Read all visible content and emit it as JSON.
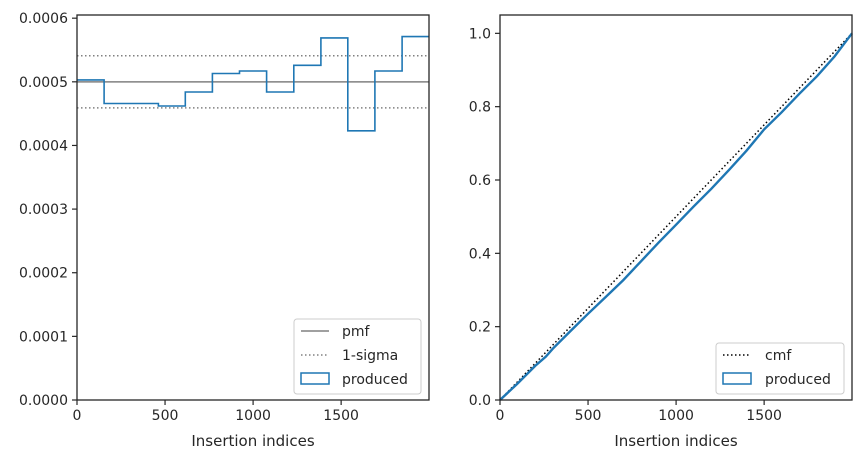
{
  "chart_data": [
    {
      "type": "step",
      "title": "",
      "xlabel": "Insertion indices",
      "ylabel": "",
      "xlim": [
        0,
        1999
      ],
      "ylim": [
        0,
        0.000605
      ],
      "xticks": [
        0,
        500,
        1000,
        1500
      ],
      "xtick_labels": [
        "0",
        "500",
        "1000",
        "1500"
      ],
      "yticks": [
        0,
        0.0001,
        0.0002,
        0.0003,
        0.0004,
        0.0005,
        0.0006
      ],
      "ytick_labels": [
        "0.0000",
        "0.0001",
        "0.0002",
        "0.0003",
        "0.0004",
        "0.0005",
        "0.0006"
      ],
      "pmf": 0.0005,
      "sigma_band": [
        0.000459,
        0.000541
      ],
      "bin_edges": [
        0,
        154,
        308,
        462,
        615,
        769,
        923,
        1077,
        1231,
        1385,
        1538,
        1692,
        1846,
        1999
      ],
      "series": [
        {
          "name": "produced",
          "values": [
            0.000503,
            0.000466,
            0.000466,
            0.000462,
            0.000484,
            0.000513,
            0.000517,
            0.000484,
            0.000526,
            0.000569,
            0.000423,
            0.000517,
            0.000571
          ],
          "color": "#1f77b4"
        }
      ],
      "legend": [
        "pmf",
        "1-sigma",
        "produced"
      ],
      "legend_position": "lower-right",
      "colors": {
        "pmf": "#808080",
        "sigma": "#808080",
        "produced": "#1f77b4"
      }
    },
    {
      "type": "line",
      "title": "",
      "xlabel": "Insertion indices",
      "ylabel": "",
      "xlim": [
        0,
        1999
      ],
      "ylim": [
        0,
        1.05
      ],
      "xticks": [
        0,
        500,
        1000,
        1500
      ],
      "xtick_labels": [
        "0",
        "500",
        "1000",
        "1500"
      ],
      "yticks": [
        0,
        0.2,
        0.4,
        0.6,
        0.8,
        1.0
      ],
      "ytick_labels": [
        "0.0",
        "0.2",
        "0.4",
        "0.6",
        "0.8",
        "1.0"
      ],
      "series": [
        {
          "name": "cmf",
          "x": [
            0,
            1999
          ],
          "y": [
            0,
            1.0
          ],
          "color": "#000000"
        },
        {
          "name": "produced",
          "x": [
            0,
            100,
            200,
            260,
            300,
            400,
            500,
            600,
            700,
            800,
            900,
            1000,
            1100,
            1200,
            1300,
            1400,
            1500,
            1600,
            1700,
            1800,
            1900,
            1999
          ],
          "y": [
            0,
            0.045,
            0.093,
            0.118,
            0.14,
            0.188,
            0.235,
            0.281,
            0.327,
            0.378,
            0.429,
            0.478,
            0.528,
            0.576,
            0.627,
            0.68,
            0.738,
            0.785,
            0.835,
            0.883,
            0.937,
            1.0
          ],
          "color": "#1f77b4"
        }
      ],
      "legend": [
        "cmf",
        "produced"
      ],
      "legend_position": "lower-right"
    }
  ]
}
